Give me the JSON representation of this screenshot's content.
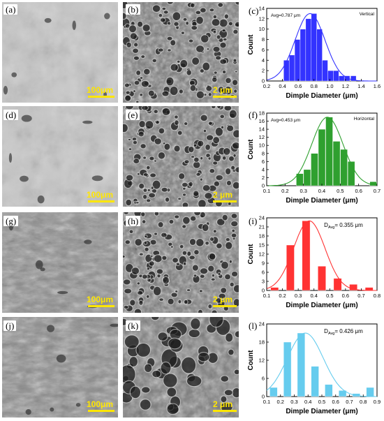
{
  "panels": [
    {
      "label": "(a)",
      "scale": "100μm",
      "style": "fracture-light"
    },
    {
      "label": "(b)",
      "scale": "2 μm",
      "style": "dimple"
    },
    {
      "label": "(d)",
      "scale": "100μm",
      "style": "fracture-light"
    },
    {
      "label": "(e)",
      "scale": "2 μm",
      "style": "dimple"
    },
    {
      "label": "(g)",
      "scale": "100μm",
      "style": "fracture-dark"
    },
    {
      "label": "(h)",
      "scale": "2 μm",
      "style": "dimple"
    },
    {
      "label": "(j)",
      "scale": "100μm",
      "style": "fracture-dark"
    },
    {
      "label": "(k)",
      "scale": "2 μm",
      "style": "dimple-coarse"
    }
  ],
  "chart_labels": [
    "(c)",
    "(f)",
    "(i)",
    "(l)"
  ],
  "colors": {
    "c": "#3333ff",
    "f": "#2fa02f",
    "i": "#ff3333",
    "l": "#66ccee",
    "scale": "#ffe600"
  },
  "chart_data": [
    {
      "type": "bar",
      "panel": "(c)",
      "note": "Vertical",
      "avg": "Avg=0.787 μm",
      "xlabel": "Dimple Diameter (μm)",
      "ylabel": "Count",
      "xlim": [
        0.2,
        1.6
      ],
      "ylim": [
        0,
        14
      ],
      "xticks": [
        "0.2",
        "0.4",
        "0.6",
        "0.8",
        "1.0",
        "1.2",
        "1.4",
        "1.6"
      ],
      "yticks": [
        "0",
        "2",
        "4",
        "6",
        "8",
        "10",
        "12",
        "14"
      ],
      "bin_width": 0.07,
      "x": [
        0.45,
        0.52,
        0.59,
        0.66,
        0.73,
        0.8,
        0.87,
        0.94,
        1.01,
        1.08,
        1.15,
        1.22,
        1.3
      ],
      "values": [
        4,
        5,
        8,
        10,
        12,
        13,
        10,
        4,
        2,
        2,
        1,
        1,
        1
      ],
      "fit": {
        "mean": 0.75,
        "sd": 0.19,
        "peak": 13
      }
    },
    {
      "type": "bar",
      "panel": "(f)",
      "note": "Horizontal",
      "avg": "Avg=0.453 μm",
      "xlabel": "Dimple Diameter (μm)",
      "ylabel": "Count",
      "xlim": [
        0.1,
        0.7
      ],
      "ylim": [
        0,
        18
      ],
      "xticks": [
        "0.1",
        "0.2",
        "0.3",
        "0.4",
        "0.5",
        "0.6",
        "0.7"
      ],
      "yticks": [
        "0",
        "2",
        "4",
        "6",
        "8",
        "10",
        "12",
        "14",
        "16",
        "18"
      ],
      "bin_width": 0.038,
      "x": [
        0.28,
        0.32,
        0.36,
        0.4,
        0.44,
        0.48,
        0.52,
        0.56,
        0.68
      ],
      "values": [
        3,
        4,
        8,
        14,
        17,
        11,
        9,
        6,
        1
      ],
      "fit": {
        "mean": 0.43,
        "sd": 0.085,
        "peak": 17
      }
    },
    {
      "type": "bar",
      "panel": "(i)",
      "avg_prefix": "D",
      "avg_sub": "Avg",
      "avg_value": "= 0.355 μm",
      "xlabel": "Dimple Diameter (μm)",
      "ylabel": "Count",
      "xlim": [
        0.1,
        0.8
      ],
      "ylim": [
        0,
        24
      ],
      "xticks": [
        "0.1",
        "0.2",
        "0.3",
        "0.4",
        "0.5",
        "0.6",
        "0.7",
        "0.8"
      ],
      "yticks": [
        "0",
        "3",
        "6",
        "9",
        "12",
        "15",
        "18",
        "21",
        "24"
      ],
      "bin_width": 0.05,
      "x": [
        0.15,
        0.25,
        0.35,
        0.45,
        0.55,
        0.65,
        0.75
      ],
      "values": [
        1,
        15,
        23,
        8,
        4,
        2,
        1
      ],
      "fit": {
        "mean": 0.37,
        "sd": 0.1,
        "peak": 23
      }
    },
    {
      "type": "bar",
      "panel": "(l)",
      "avg_prefix": "D",
      "avg_sub": "Avg",
      "avg_value": "= 0.426 μm",
      "xlabel": "Dimple Diameter (μm)",
      "ylabel": "Count",
      "xlim": [
        0.1,
        0.9
      ],
      "ylim": [
        0,
        24
      ],
      "xticks": [
        "0.1",
        "0.2",
        "0.3",
        "0.4",
        "0.5",
        "0.6",
        "0.7",
        "0.8",
        "0.9"
      ],
      "yticks": [
        "0",
        "6",
        "12",
        "18",
        "24"
      ],
      "bin_width": 0.055,
      "x": [
        0.15,
        0.25,
        0.35,
        0.45,
        0.55,
        0.65,
        0.75,
        0.85
      ],
      "values": [
        3,
        18,
        21,
        10,
        4,
        2,
        1,
        3
      ],
      "fit": {
        "mean": 0.38,
        "sd": 0.13,
        "peak": 21
      }
    }
  ]
}
